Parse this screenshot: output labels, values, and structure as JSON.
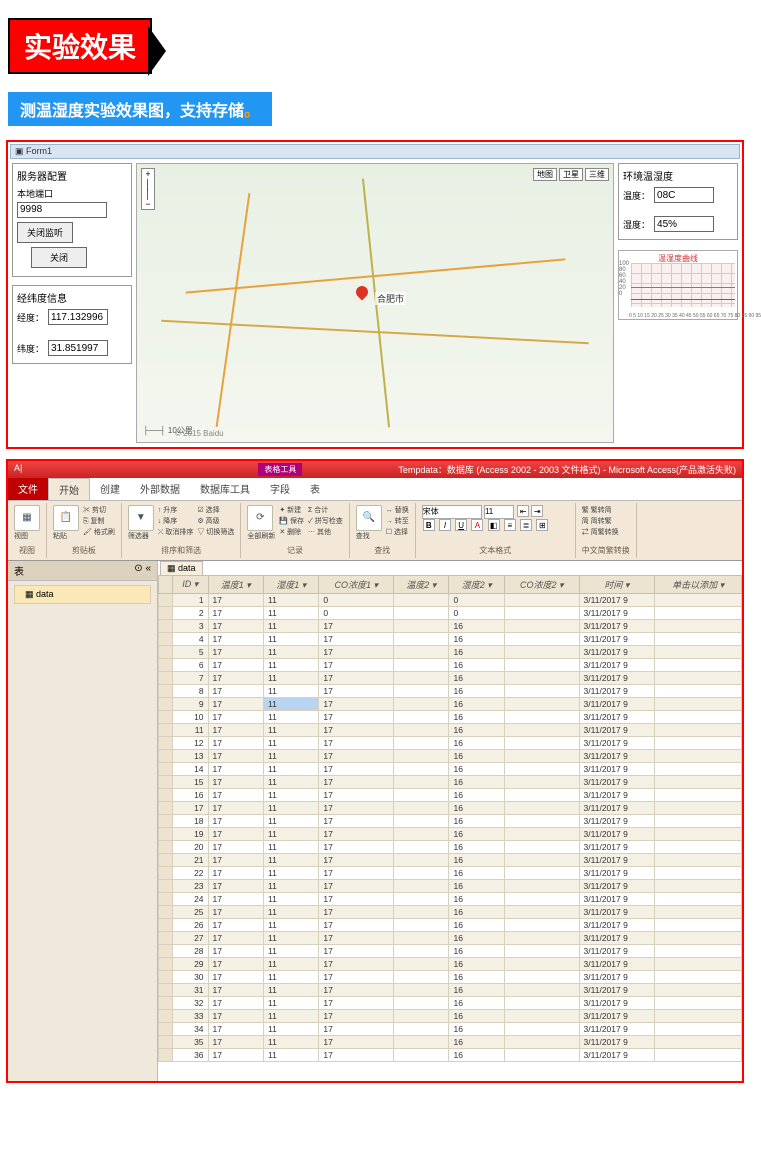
{
  "header": {
    "title": "实验效果"
  },
  "subtitle": {
    "text": "测温湿度实验效果图，支持存储",
    "dot": "。"
  },
  "form1": {
    "window_title": "Form1",
    "server_config": {
      "title": "服务器配置",
      "port_label": "本地端口",
      "port_value": "9998",
      "btn_listen": "关闭监听",
      "btn_close": "关闭"
    },
    "coords": {
      "title": "经纬度信息",
      "lng_label": "经度：",
      "lng_value": "117.132996",
      "lat_label": "纬度：",
      "lat_value": "31.851997"
    },
    "map": {
      "modes": [
        "地图",
        "卫星",
        "三维"
      ],
      "center_label": "合肥市",
      "scale": "10公里",
      "logo": "© 2015 Baidu"
    },
    "env": {
      "title": "环境温湿度",
      "temp_label": "温度：",
      "temp_value": "08C",
      "humid_label": "湿度：",
      "humid_value": "45%"
    },
    "minichart": {
      "title": "温湿度曲线",
      "ylim": [
        0,
        100
      ],
      "ytick_step": 20,
      "xticks": "0 5 10 15 20 25 30 35 40 45 50 55 60 65 70 75 80 85 90 95",
      "line_colors": [
        "#2a8",
        "#d33"
      ],
      "grid_color": "#ccc",
      "background_color": "#faf0f0"
    }
  },
  "access": {
    "title_right": "Tempdata：数据库 (Access 2002 - 2003 文件格式) - Microsoft Access(产品激活失败)",
    "tabtool": "表格工具",
    "tabs": {
      "file": "文件",
      "items": [
        "开始",
        "创建",
        "外部数据",
        "数据库工具",
        "字段",
        "表"
      ]
    },
    "ribbon_groups": [
      "视图",
      "剪贴板",
      "排序和筛选",
      "记录",
      "查找",
      "文本格式",
      "中文简繁转换"
    ],
    "ribbon_labels": {
      "view": "视图",
      "paste": "粘贴",
      "cut": "剪切",
      "copy": "复制",
      "format": "格式刷",
      "filter": "筛选器",
      "asc": "升序",
      "desc": "降序",
      "clear": "取消排序",
      "sel": "选择",
      "adv": "高级",
      "toggle": "切换筛选",
      "refresh": "全部刷新",
      "new": "新建",
      "save": "保存",
      "delete": "删除",
      "sum": "合计",
      "spell": "拼写检查",
      "other": "其他",
      "find": "查找",
      "replace": "替换",
      "goto": "转至",
      "select": "选择",
      "font_name": "宋体",
      "font_size": "11",
      "simp": "繁转简",
      "trad": "简转繁",
      "conv": "简繁转换"
    },
    "sidebar": {
      "header": "表",
      "item": "data"
    },
    "table": {
      "tab": "data",
      "columns": [
        "ID",
        "温度1",
        "湿度1",
        "CO浓度1",
        "温度2",
        "湿度2",
        "CO浓度2",
        "时间",
        "单击以添加"
      ],
      "selected_row": 9,
      "selected_col": 2,
      "row_count": 36,
      "row_template": {
        "temp1": "17",
        "humid1": "11",
        "co1_a": "0",
        "co1_b": "17",
        "temp2": "",
        "humid2_a": "0",
        "humid2_b": "16",
        "co2": "",
        "time": "3/11/2017 9"
      }
    }
  }
}
